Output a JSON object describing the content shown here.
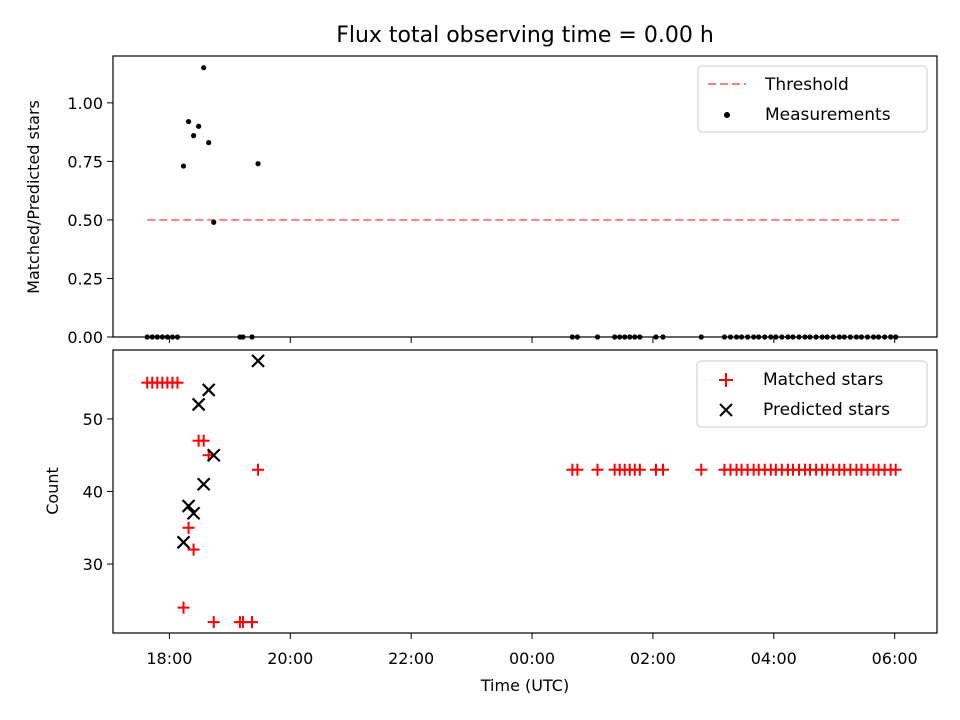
{
  "colors": {
    "threshold": "#ff7f7f",
    "measurements": "#000000",
    "matched": "#ff0000",
    "predicted": "#000000",
    "axes": "#000000"
  },
  "chart_data": [
    {
      "type": "scatter",
      "title": "Flux total observing time = 0.00 h",
      "xlabel": "",
      "ylabel": "Matched/Predicted stars",
      "x_ticks": [
        "18:00",
        "20:00",
        "22:00",
        "00:00",
        "02:00",
        "04:00",
        "06:00"
      ],
      "x_tick_labels_visible": false,
      "xlim": [
        "17:04",
        "06:42"
      ],
      "ylim": [
        0,
        1.2
      ],
      "y_ticks": [
        "0.00",
        "0.25",
        "0.50",
        "0.75",
        "1.00"
      ],
      "legend_position": "top-right",
      "legend": [
        "Threshold",
        "Measurements"
      ],
      "series": [
        {
          "name": "Threshold",
          "style": "dashed-line",
          "x": [
            "17:38",
            "06:06"
          ],
          "y": [
            0.5,
            0.5
          ]
        },
        {
          "name": "Measurements",
          "style": "dots",
          "x": [
            "17:38",
            "17:43",
            "17:48",
            "17:53",
            "17:58",
            "18:03",
            "18:08",
            "18:14",
            "18:19",
            "18:24",
            "18:29",
            "18:34",
            "18:39",
            "18:44",
            "19:10",
            "19:13",
            "19:22",
            "19:28",
            "00:40",
            "00:45",
            "01:05",
            "01:22",
            "01:27",
            "01:32",
            "01:37",
            "01:42",
            "01:47",
            "02:03",
            "02:10",
            "02:48",
            "03:11",
            "03:17",
            "03:23",
            "03:28",
            "03:34",
            "03:40",
            "03:45",
            "03:51",
            "03:57",
            "04:02",
            "04:08",
            "04:14",
            "04:19",
            "04:25",
            "04:31",
            "04:36",
            "04:42",
            "04:48",
            "04:53",
            "04:59",
            "05:05",
            "05:10",
            "05:16",
            "05:22",
            "05:27",
            "05:33",
            "05:39",
            "05:44",
            "05:50",
            "05:56",
            "06:01"
          ],
          "y": [
            0,
            0,
            0,
            0,
            0,
            0,
            0,
            0.73,
            0.92,
            0.86,
            0.9,
            1.15,
            0.83,
            0.49,
            0,
            0,
            0,
            0.74,
            0,
            0,
            0,
            0,
            0,
            0,
            0,
            0,
            0,
            0,
            0,
            0,
            0,
            0,
            0,
            0,
            0,
            0,
            0,
            0,
            0,
            0,
            0,
            0,
            0,
            0,
            0,
            0,
            0,
            0,
            0,
            0,
            0,
            0,
            0,
            0,
            0,
            0,
            0,
            0,
            0,
            0,
            0
          ]
        }
      ]
    },
    {
      "type": "scatter",
      "title": "",
      "xlabel": "Time (UTC)",
      "ylabel": "Count",
      "x_ticks": [
        "18:00",
        "20:00",
        "22:00",
        "00:00",
        "02:00",
        "04:00",
        "06:00"
      ],
      "xlim": [
        "17:04",
        "06:42"
      ],
      "ylim": [
        20.5,
        59.5
      ],
      "y_ticks": [
        "30",
        "40",
        "50"
      ],
      "legend_position": "top-right",
      "legend": [
        "Matched stars",
        "Predicted stars"
      ],
      "series": [
        {
          "name": "Matched stars",
          "style": "plus",
          "x": [
            "17:38",
            "17:43",
            "17:48",
            "17:53",
            "17:58",
            "18:03",
            "18:08",
            "18:14",
            "18:19",
            "18:24",
            "18:29",
            "18:34",
            "18:39",
            "18:44",
            "19:10",
            "19:13",
            "19:22",
            "19:28",
            "00:40",
            "00:45",
            "01:05",
            "01:22",
            "01:27",
            "01:32",
            "01:37",
            "01:42",
            "01:47",
            "02:03",
            "02:10",
            "02:48",
            "03:11",
            "03:17",
            "03:23",
            "03:28",
            "03:34",
            "03:40",
            "03:45",
            "03:51",
            "03:57",
            "04:02",
            "04:08",
            "04:14",
            "04:19",
            "04:25",
            "04:31",
            "04:36",
            "04:42",
            "04:48",
            "04:53",
            "04:59",
            "05:05",
            "05:10",
            "05:16",
            "05:22",
            "05:27",
            "05:33",
            "05:39",
            "05:44",
            "05:50",
            "05:56",
            "06:01"
          ],
          "y": [
            55,
            55,
            55,
            55,
            55,
            55,
            55,
            24,
            35,
            32,
            47,
            47,
            45,
            22,
            22,
            22,
            22,
            43,
            43,
            43,
            43,
            43,
            43,
            43,
            43,
            43,
            43,
            43,
            43,
            43,
            43,
            43,
            43,
            43,
            43,
            43,
            43,
            43,
            43,
            43,
            43,
            43,
            43,
            43,
            43,
            43,
            43,
            43,
            43,
            43,
            43,
            43,
            43,
            43,
            43,
            43,
            43,
            43,
            43,
            43,
            43
          ]
        },
        {
          "name": "Predicted stars",
          "style": "x",
          "x": [
            "18:14",
            "18:19",
            "18:24",
            "18:29",
            "18:34",
            "18:39",
            "18:44",
            "19:28"
          ],
          "y": [
            33,
            38,
            37,
            52,
            41,
            54,
            45,
            58
          ]
        }
      ]
    }
  ]
}
